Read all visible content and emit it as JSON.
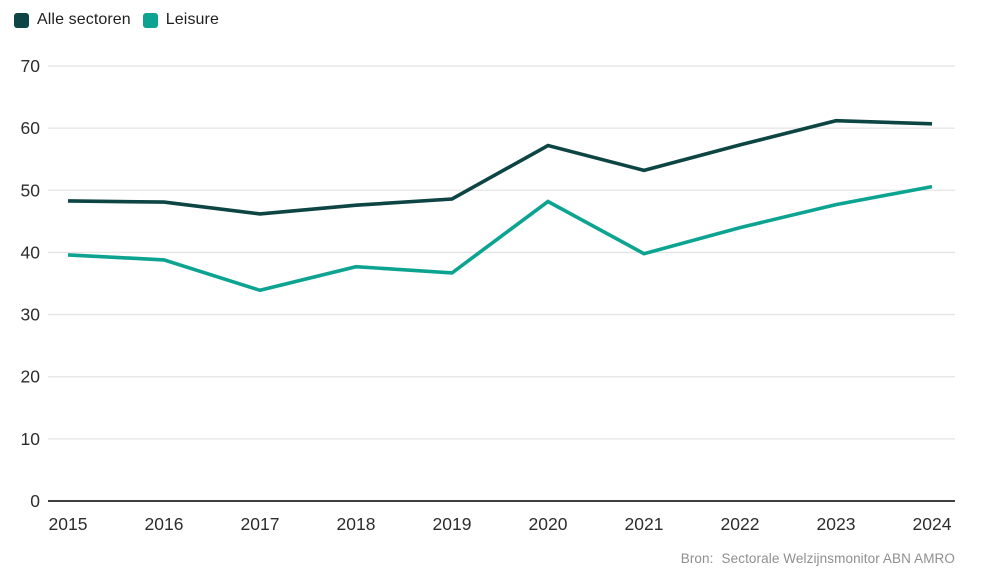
{
  "legend": {
    "items": [
      {
        "label": "Alle sectoren",
        "color": "#0d4544"
      },
      {
        "label": "Leisure",
        "color": "#0ca491"
      }
    ]
  },
  "source": {
    "prefix": "Bron:",
    "text": "Sectorale Welzijnsmonitor ABN AMRO"
  },
  "chart_data": {
    "type": "line",
    "x": [
      2015,
      2016,
      2017,
      2018,
      2019,
      2020,
      2021,
      2022,
      2023,
      2024
    ],
    "series": [
      {
        "name": "Alle sectoren",
        "color": "#0d4544",
        "values": [
          48.3,
          48.1,
          46.2,
          47.6,
          48.6,
          57.2,
          53.2,
          57.3,
          61.2,
          60.7
        ]
      },
      {
        "name": "Leisure",
        "color": "#0ca491",
        "values": [
          39.6,
          38.8,
          33.9,
          37.7,
          36.7,
          48.2,
          39.8,
          44.0,
          47.7,
          50.6
        ]
      }
    ],
    "title": "",
    "xlabel": "",
    "ylabel": "",
    "ylim": [
      0,
      70
    ],
    "yticks": [
      0,
      10,
      20,
      30,
      40,
      50,
      60,
      70
    ],
    "grid": true,
    "legend_position": "top-left"
  },
  "colors": {
    "grid_line": "#e4e4e4",
    "axis_line": "#404040",
    "tick_text": "#2d2d2d",
    "source_text": "#8f8f8f"
  }
}
